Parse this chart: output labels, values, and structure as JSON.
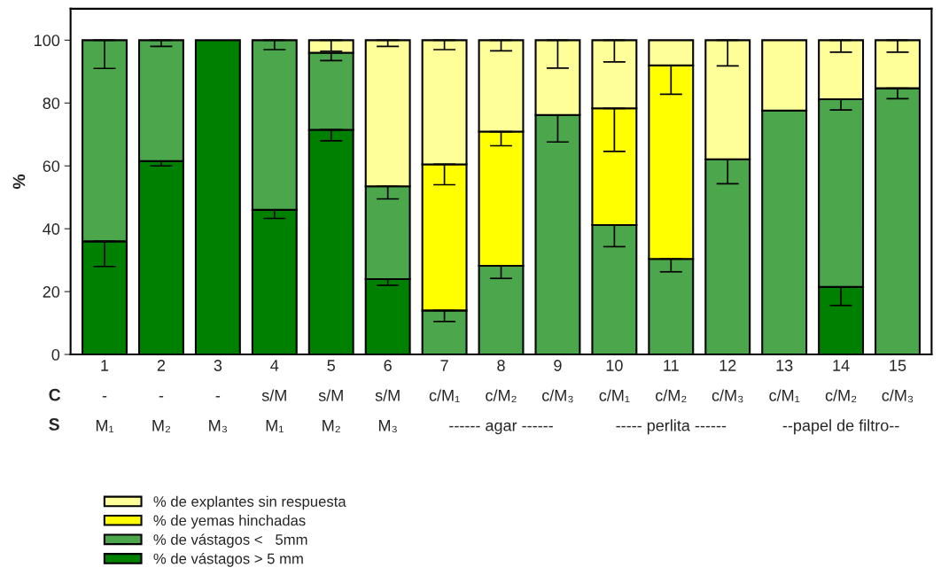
{
  "chart_data": {
    "type": "bar",
    "stacked": true,
    "ylabel": "%",
    "categories": [
      "1\n-\nM₁",
      "2\n-\nM₂",
      "3\n-\nM₃",
      "4\ns/M\nM₁",
      "5\ns/M\nM₂",
      "6\ns/M\nM₃",
      "7\nc/M₁\n",
      "8\nc/M₂\n------ agar ------",
      "9\nc/M₃\n",
      "10\nc/M₁\n",
      "11\nc/M₂\n----- perlita ------",
      "12\nc/M₃\n",
      "13\nc/M₁\n",
      "14\nc/M₂\n--papel de filtro--",
      "15\nc/M₃\n"
    ],
    "series": [
      {
        "name": "% de vástagos > 5 mm",
        "color": "#008000",
        "values": [
          36,
          61.5,
          100,
          46,
          71.5,
          24,
          null,
          null,
          null,
          null,
          null,
          null,
          null,
          21.5,
          null
        ],
        "errors": [
          [
            28,
            36
          ],
          [
            60,
            61.5
          ],
          null,
          [
            43.3,
            46
          ],
          [
            68,
            71.5
          ],
          [
            22,
            24
          ],
          null,
          null,
          null,
          null,
          null,
          null,
          null,
          [
            15.6,
            21.5
          ],
          null
        ]
      },
      {
        "name": "% de vástagos <   5mm",
        "color": "#4ca64c",
        "values": [
          64,
          38.5,
          null,
          54,
          24.5,
          29.5,
          14,
          28.2,
          76.2,
          41.2,
          30.4,
          62.1,
          77.6,
          59.7,
          84.7
        ],
        "errors": [
          [
            91,
            100
          ],
          [
            98,
            100
          ],
          null,
          [
            97,
            100
          ],
          [
            93.5,
            96
          ],
          [
            49.5,
            53.5
          ],
          [
            10.5,
            14
          ],
          [
            24.2,
            28.2
          ],
          [
            67.6,
            76.2
          ],
          [
            34.3,
            41.2
          ],
          [
            26.3,
            30.4
          ],
          [
            54.3,
            62.1
          ],
          null,
          [
            77.8,
            81.2
          ],
          [
            81.4,
            84.7
          ]
        ]
      },
      {
        "name": "% de yemas hinchadas",
        "color": "#ffff00",
        "values": [
          null,
          null,
          null,
          null,
          null,
          null,
          46.5,
          42.7,
          null,
          37.1,
          61.6,
          null,
          null,
          null,
          null
        ],
        "errors": [
          null,
          null,
          null,
          null,
          null,
          null,
          [
            54,
            60.5
          ],
          [
            66.4,
            70.9
          ],
          null,
          [
            64.6,
            78.3
          ],
          [
            82.8,
            92
          ],
          null,
          null,
          null,
          null
        ]
      },
      {
        "name": "% de explantes sin respuesta",
        "color": "#ffff99",
        "values": [
          null,
          null,
          null,
          null,
          4,
          46.5,
          39.5,
          29.1,
          23.8,
          21.7,
          8,
          37.9,
          22.4,
          18.8,
          15.3
        ],
        "errors": [
          null,
          null,
          null,
          null,
          [
            96.5,
            100
          ],
          [
            98,
            100
          ],
          [
            97,
            100
          ],
          [
            96.6,
            100
          ],
          [
            91.1,
            100
          ],
          [
            93.1,
            100
          ],
          null,
          [
            91.8,
            100
          ],
          null,
          [
            96.2,
            100
          ],
          [
            96.2,
            100
          ]
        ]
      }
    ],
    "ylim": [
      0,
      110
    ],
    "yticks": [
      0,
      20,
      40,
      60,
      80,
      100
    ],
    "annotations": [
      "C",
      "S"
    ],
    "legend": "bottom left",
    "grid": false
  }
}
